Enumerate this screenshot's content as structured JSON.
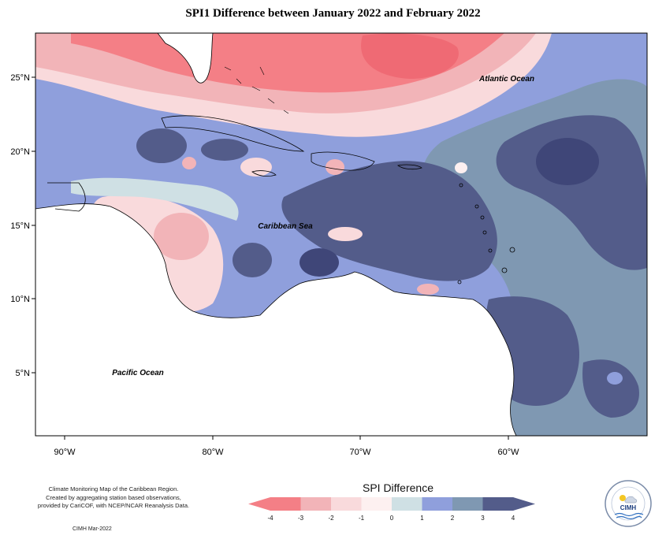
{
  "title": "SPI1 Difference between January 2022 and February 2022",
  "map": {
    "latitude_labels": [
      "25°N",
      "20°N",
      "15°N",
      "10°N",
      "5°N"
    ],
    "longitude_labels": [
      "90°W",
      "80°W",
      "70°W",
      "60°W"
    ],
    "ocean_labels": {
      "atlantic": "Atlantic Ocean",
      "caribbean": "Caribbean Sea",
      "pacific": "Pacific Ocean"
    }
  },
  "legend": {
    "title": "SPI Difference",
    "ticks": [
      "-4",
      "-3",
      "-2",
      "-1",
      "0",
      "1",
      "2",
      "3",
      "4"
    ],
    "colors": [
      "#f47f86",
      "#f2b4b8",
      "#f9dadc",
      "#fdf0f0",
      "#cfe0e4",
      "#8f9fdc",
      "#7f98b2",
      "#535c8a"
    ]
  },
  "footer": {
    "line1": "Climate Monitoring Map of the Caribbean Region.",
    "line2": "Created by aggregating station based observations,",
    "line3": "provided by CariCOF, with NCEP/NCAR Reanalysis Data.",
    "date": "CIMH Mar-2022"
  },
  "logo": {
    "text": "CIMH"
  }
}
